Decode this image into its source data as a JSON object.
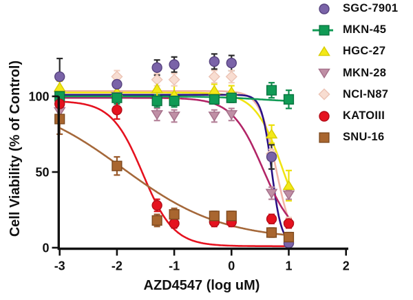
{
  "figure": {
    "background": "#ffffff",
    "axis_color": "#111111"
  },
  "chart_data": {
    "type": "scatter",
    "title": "",
    "xlabel": "AZD4547 (log uM)",
    "ylabel": "Cell Viability (% of Control)",
    "xlim": [
      -3,
      2.05
    ],
    "ylim": [
      0,
      132
    ],
    "x_ticks": [
      -3,
      -2,
      -1,
      0,
      1,
      2
    ],
    "y_ticks": [
      0,
      50,
      100
    ],
    "grid": false,
    "legend_position": "top-right",
    "x": [
      -3,
      -2,
      -1.3,
      -1,
      -0.3,
      0,
      0.7,
      1
    ],
    "series": [
      {
        "name": "SGC-7901",
        "marker": "circle",
        "color": "#7a63a8",
        "edge": "#57437f",
        "errorbar_color": "#2a2a2a",
        "curve_color": "#2b1185",
        "values": [
          113,
          108,
          119,
          121,
          123,
          122,
          60,
          3
        ],
        "errors": [
          12,
          5,
          5,
          5,
          5,
          5,
          8,
          2
        ],
        "fit": {
          "top": 101,
          "bottom": 2,
          "logIC50": 0.7,
          "hill": 5
        }
      },
      {
        "name": "MKN-45",
        "marker": "square",
        "color": "#109b55",
        "edge": "#0a7440",
        "errorbar_color": "#0e8c4c",
        "curve_color": "#109b55",
        "values": [
          100,
          99,
          97,
          97,
          98,
          99,
          104,
          98
        ],
        "errors": [
          4,
          4,
          4,
          4,
          3,
          3,
          5,
          6
        ],
        "fit": {
          "top": 100,
          "bottom": 96,
          "logIC50": 0.5,
          "hill": 1
        }
      },
      {
        "name": "HGC-27",
        "marker": "triangle-up",
        "color": "#f3e818",
        "edge": "#d8cd00",
        "errorbar_color": "#ece00a",
        "curve_color": "#f0e412",
        "values": [
          106,
          103,
          105,
          101,
          104,
          103,
          75,
          41
        ],
        "errors": [
          4,
          4,
          5,
          6,
          4,
          4,
          6,
          10
        ],
        "fit": {
          "top": 102.5,
          "bottom": 0,
          "logIC50": 0.9,
          "hill": 1.8
        }
      },
      {
        "name": "MKN-28",
        "marker": "triangle-down",
        "color": "#bf8fa5",
        "edge": "#a5708a",
        "errorbar_color": "#b5839a",
        "curve_color": "#b22567",
        "values": [
          90,
          100,
          88,
          87,
          87,
          88,
          36,
          35
        ],
        "errors": [
          3,
          3,
          4,
          4,
          4,
          4,
          4,
          3
        ],
        "fit": {
          "top": 99,
          "bottom": 5,
          "logIC50": 0.55,
          "hill": 1.6
        }
      },
      {
        "name": "NCI-N87",
        "marker": "diamond",
        "color": "#f8ddd1",
        "edge": "#ecc3b4",
        "errorbar_color": "#f2cfc0",
        "curve_color": "#f2b3a6",
        "values": [
          103,
          113,
          111,
          111,
          113,
          113,
          62,
          17
        ],
        "errors": [
          3,
          4,
          4,
          4,
          4,
          4,
          3,
          3
        ],
        "fit": {
          "top": 103.5,
          "bottom": 0,
          "logIC50": 0.78,
          "hill": 3
        }
      },
      {
        "name": "KATOIII",
        "marker": "circle",
        "color": "#e5121f",
        "edge": "#b30d18",
        "errorbar_color": "#d91019",
        "curve_color": "#e5121f",
        "values": [
          95,
          91,
          28,
          16,
          17,
          17,
          19,
          16
        ],
        "errors": [
          4,
          6,
          4,
          3,
          3,
          3,
          3,
          3
        ],
        "fit": {
          "top": 97,
          "bottom": 1,
          "logIC50": -1.55,
          "hill": 1.6
        }
      },
      {
        "name": "SNU-16",
        "marker": "square",
        "color": "#a9662f",
        "edge": "#7e4a1f",
        "errorbar_color": "#99592a",
        "curve_color": "#a5683a",
        "values": [
          85,
          54,
          18,
          22,
          21,
          21,
          10,
          7
        ],
        "errors": [
          10,
          6,
          4,
          4,
          3,
          3,
          3,
          3
        ],
        "fit": {
          "top": 100,
          "bottom": 5,
          "logIC50": -1.9,
          "hill": 0.5
        }
      }
    ]
  }
}
